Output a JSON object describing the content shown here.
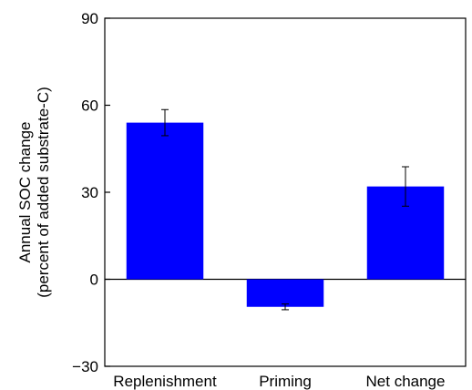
{
  "chart_data": {
    "type": "bar",
    "categories": [
      "Replenishment",
      "Priming",
      "Net change"
    ],
    "values": [
      54,
      -9.5,
      32
    ],
    "error": [
      4.5,
      1,
      6.8
    ],
    "ylabel": "Annual SOC change",
    "ylabel2": "(percent of added substrate-C)",
    "ylim": [
      -30,
      90
    ],
    "yticks": [
      -30,
      0,
      30,
      60,
      90
    ],
    "ytick_labels": [
      "−30",
      "0",
      "30",
      "60",
      "90"
    ],
    "grid": false,
    "legend": "none",
    "bar_color": "#0000ff",
    "baseline": 0
  }
}
